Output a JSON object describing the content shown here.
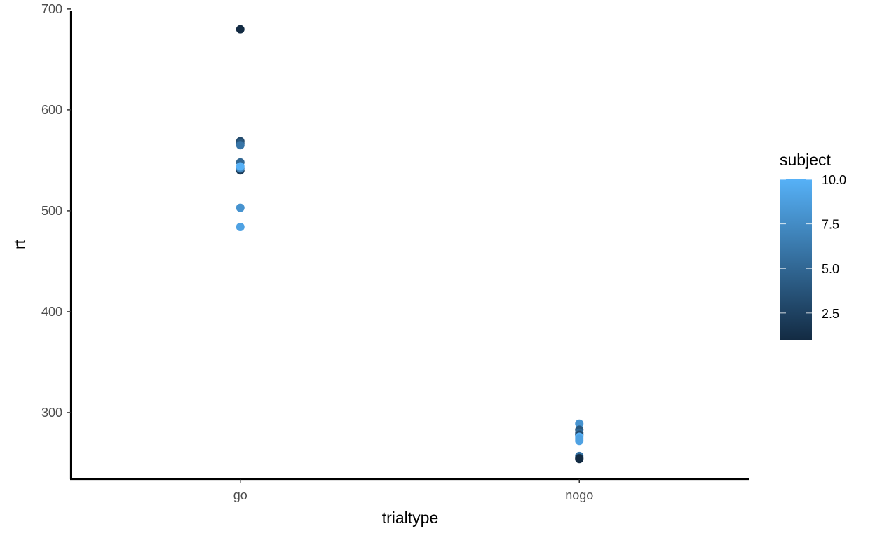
{
  "chart_data": {
    "type": "scatter",
    "title": "",
    "xlabel": "trialtype",
    "ylabel": "rt",
    "categories": [
      "go",
      "nogo"
    ],
    "ylim": [
      234,
      702
    ],
    "yticks": [
      300,
      400,
      500,
      600,
      700
    ],
    "grid": false,
    "legend": {
      "title": "subject",
      "position": "right",
      "type": "colorbar",
      "range": [
        1,
        10
      ],
      "ticks": [
        "2.5",
        "5.0",
        "7.5",
        "10.0"
      ],
      "tick_values": [
        2.5,
        5.0,
        7.5,
        10.0
      ],
      "color_low": "#132B43",
      "color_high": "#56B1F7"
    },
    "points": [
      {
        "x": "go",
        "y": 680,
        "subject": 1
      },
      {
        "x": "go",
        "y": 569,
        "subject": 3
      },
      {
        "x": "go",
        "y": 567,
        "subject": 4
      },
      {
        "x": "go",
        "y": 565,
        "subject": 6
      },
      {
        "x": "go",
        "y": 548,
        "subject": 5
      },
      {
        "x": "go",
        "y": 540,
        "subject": 2
      },
      {
        "x": "go",
        "y": 542,
        "subject": 7
      },
      {
        "x": "go",
        "y": 544,
        "subject": 10
      },
      {
        "x": "go",
        "y": 503,
        "subject": 8
      },
      {
        "x": "go",
        "y": 484,
        "subject": 9
      },
      {
        "x": "nogo",
        "y": 289,
        "subject": 8
      },
      {
        "x": "nogo",
        "y": 283,
        "subject": 4
      },
      {
        "x": "nogo",
        "y": 280,
        "subject": 5
      },
      {
        "x": "nogo",
        "y": 278,
        "subject": 3
      },
      {
        "x": "nogo",
        "y": 276,
        "subject": 10
      },
      {
        "x": "nogo",
        "y": 274,
        "subject": 9
      },
      {
        "x": "nogo",
        "y": 272,
        "subject": 9
      },
      {
        "x": "nogo",
        "y": 257,
        "subject": 6
      },
      {
        "x": "nogo",
        "y": 255,
        "subject": 2
      },
      {
        "x": "nogo",
        "y": 254,
        "subject": 1
      }
    ]
  }
}
